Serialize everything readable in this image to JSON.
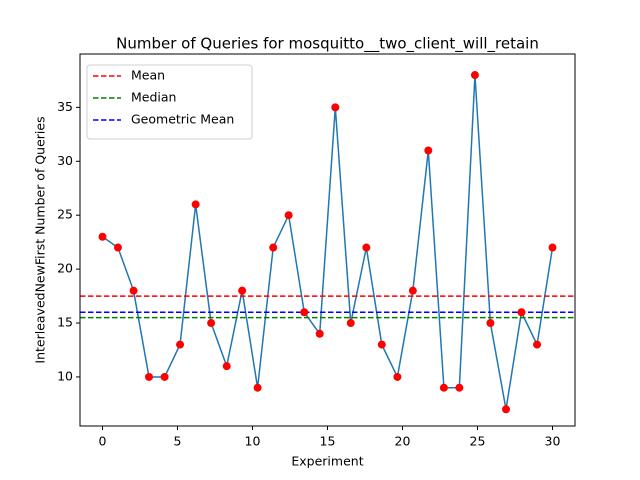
{
  "chart_data": {
    "type": "line",
    "title": "Number of Queries for mosquitto__two_client_will_retain",
    "x_label": "Experiment",
    "y_label": "InterleavedNewFirst Number of Queries",
    "x": [
      0,
      1.03,
      2.07,
      3.1,
      4.14,
      5.17,
      6.21,
      7.24,
      8.28,
      9.31,
      10.34,
      11.38,
      12.41,
      13.45,
      14.48,
      15.52,
      16.55,
      17.59,
      18.62,
      19.66,
      20.69,
      21.72,
      22.76,
      23.79,
      24.83,
      25.86,
      26.9,
      27.93,
      28.97,
      30
    ],
    "values": [
      23,
      22,
      18,
      10,
      10,
      13,
      26,
      15,
      11,
      18,
      9,
      22,
      25,
      16,
      14,
      35,
      15,
      22,
      13,
      10,
      18,
      31,
      9,
      9,
      38,
      15,
      7,
      16,
      13,
      22
    ],
    "line_color": "#1f77b4",
    "marker_color": "#ff0000",
    "reference_lines": [
      {
        "name": "Mean",
        "value": 17.5,
        "color": "#ff0000"
      },
      {
        "name": "Median",
        "value": 15.5,
        "color": "#008000"
      },
      {
        "name": "Geometric Mean",
        "value": 16,
        "color": "#0000ff"
      }
    ],
    "xlim": [
      -1.5,
      31.5
    ],
    "xticks": [
      0,
      5,
      10,
      15,
      20,
      25,
      30
    ],
    "ylim": [
      5.45,
      39.95
    ],
    "yticks": [
      10,
      15,
      20,
      25,
      30,
      35
    ],
    "legend": "upper left",
    "grid": false
  }
}
